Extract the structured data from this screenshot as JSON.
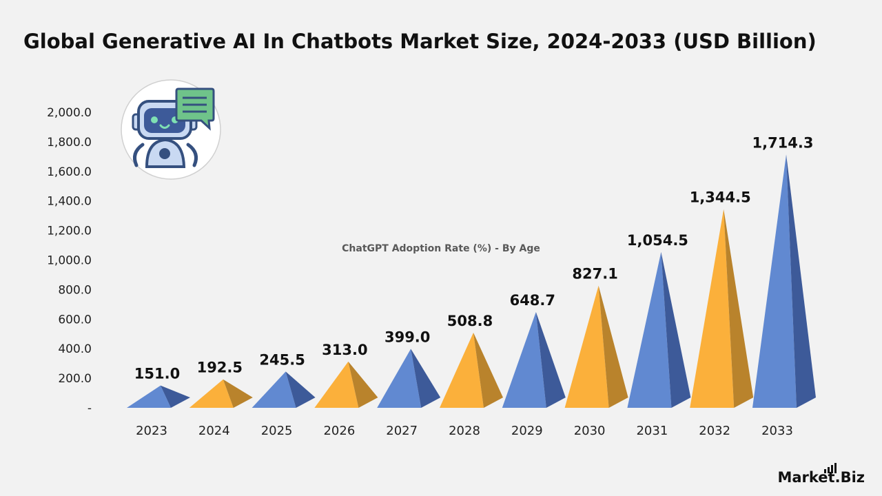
{
  "title": "Global Generative AI In Chatbots Market Size, 2024-2033 (USD Billion)",
  "brand": {
    "name": "Market.Biz"
  },
  "icon": {
    "name": "chatbot-robot-icon"
  },
  "colors": {
    "blue": "#6189d1",
    "blue_dark": "#3d5a99",
    "gold": "#fbb03b",
    "gold_dark": "#b9832c",
    "background": "#f2f2f2"
  },
  "chart_data": {
    "type": "bar",
    "title": "Global Generative AI In Chatbots Market Size, 2024-2033 (USD Billion)",
    "subtitle": "ChatGPT Adoption Rate (%) - By Age",
    "categories": [
      "2023",
      "2024",
      "2025",
      "2026",
      "2027",
      "2028",
      "2029",
      "2030",
      "2031",
      "2032",
      "2033"
    ],
    "values": [
      151.0,
      192.5,
      245.5,
      313.0,
      399.0,
      508.8,
      648.7,
      827.1,
      1054.5,
      1344.5,
      1714.3
    ],
    "value_labels": [
      "151.0",
      "192.5",
      "245.5",
      "313.0",
      "399.0",
      "508.8",
      "648.7",
      "827.1",
      "1,054.5",
      "1,344.5",
      "1,714.3"
    ],
    "bar_colors": [
      "blue",
      "gold",
      "blue",
      "gold",
      "blue",
      "gold",
      "blue",
      "gold",
      "blue",
      "gold",
      "blue"
    ],
    "ylim": [
      0,
      2000
    ],
    "yticks": [
      0,
      200,
      400,
      600,
      800,
      1000,
      1200,
      1400,
      1600,
      1800,
      2000
    ],
    "ytick_labels": [
      "-",
      "200.0",
      "400.0",
      "600.0",
      "800.0",
      "1,000.0",
      "1,200.0",
      "1,400.0",
      "1,600.0",
      "1,800.0",
      "2,000.0"
    ],
    "grid": false,
    "legend": "none"
  }
}
